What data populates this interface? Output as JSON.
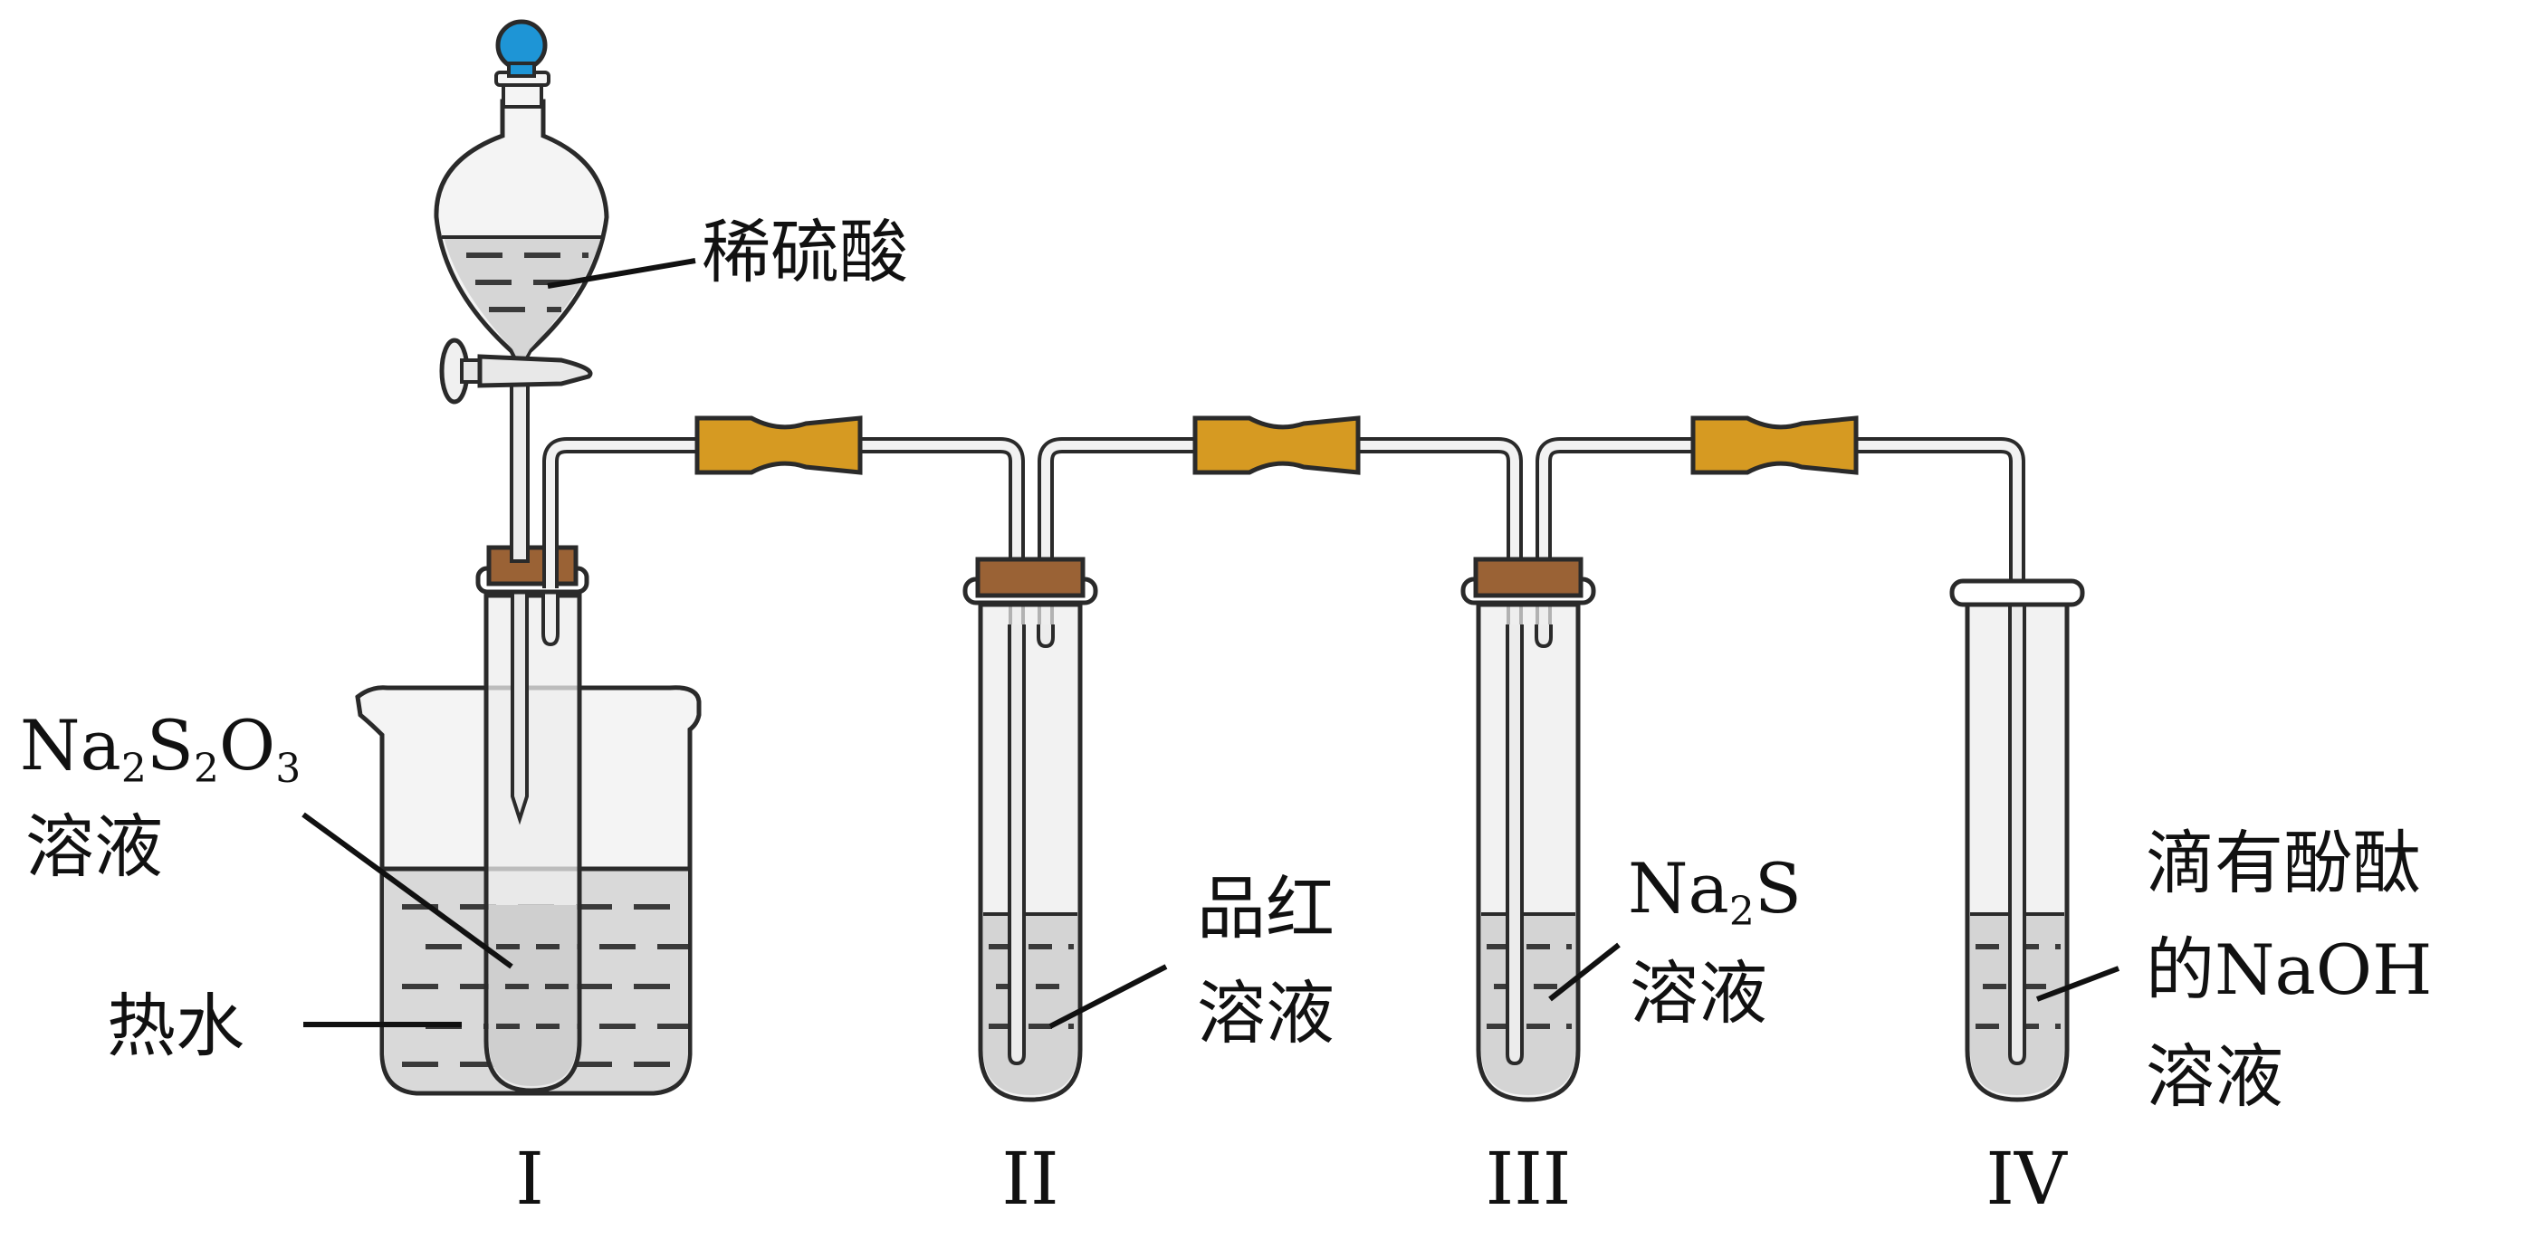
{
  "labels": {
    "funnel_reagent": "稀硫酸",
    "flask_reagent_main": "Na",
    "flask_reagent_sub1": "2",
    "flask_reagent_mid": "S",
    "flask_reagent_sub2": "2",
    "flask_reagent_mid2": "O",
    "flask_reagent_sub3": "3",
    "flask_reagent_line2": "溶液",
    "bath": "热水",
    "tube2_line1": "品红",
    "tube2_line2": "溶液",
    "tube3_main": "Na",
    "tube3_sub": "2",
    "tube3_end": "S",
    "tube3_line2": "溶液",
    "tube4_line1": "滴有酚酞",
    "tube4_line2": "的NaOH",
    "tube4_line3": "溶液"
  },
  "apparatus_numerals": [
    "I",
    "II",
    "III",
    "IV"
  ],
  "colors": {
    "stopper_knob": "#1e95d6",
    "rubber_tubing": "#d69a22",
    "cork": "#9a6235"
  }
}
